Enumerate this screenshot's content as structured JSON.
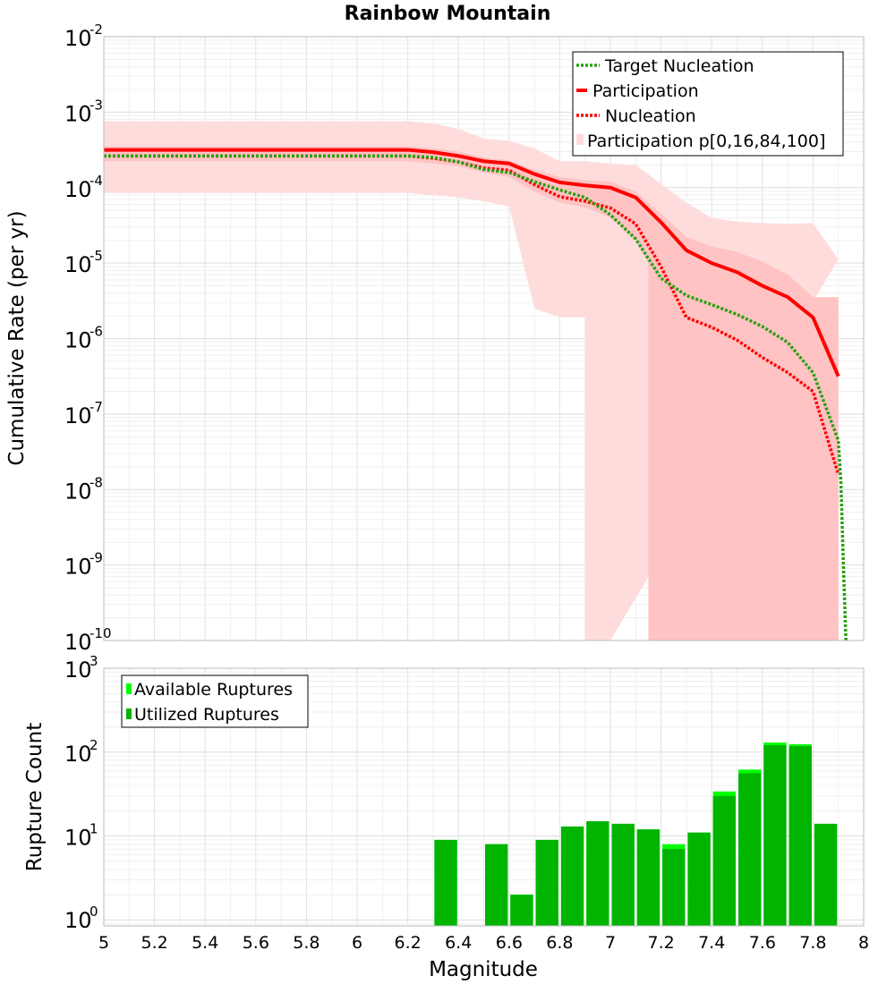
{
  "chart_data": [
    {
      "type": "line",
      "title": "Rainbow Mountain",
      "xlabel": "",
      "ylabel": "Cumulative Rate (per yr)",
      "xlim": [
        5,
        8
      ],
      "ylim_log10": [
        -10,
        -2
      ],
      "y_scale": "log",
      "y_tick_exponents": [
        "-2",
        "-3",
        "-4",
        "-5",
        "-6",
        "-7",
        "-8",
        "-9",
        "-10"
      ],
      "legend_position": "top-right",
      "legend": {
        "target": "Target Nucleation",
        "participation": "Participation",
        "nucleation": "Nucleation",
        "band": "Participation p[0,16,84,100]"
      },
      "colors": {
        "target": "#2aa012",
        "participation": "#ff0000",
        "nucleation": "#ff0000",
        "band_outer": "#ffdcdc",
        "band_inner": "#ffc3c3"
      },
      "series": [
        {
          "name": "Target Nucleation",
          "x": [
            5.0,
            6.2,
            6.3,
            6.4,
            6.5,
            6.6,
            6.7,
            6.8,
            6.9,
            7.0,
            7.1,
            7.2,
            7.3,
            7.4,
            7.5,
            7.6,
            7.7,
            7.8,
            7.9,
            7.91,
            7.92,
            7.93
          ],
          "log10_y": [
            -3.58,
            -3.58,
            -3.6,
            -3.66,
            -3.76,
            -3.8,
            -3.92,
            -4.03,
            -4.13,
            -4.36,
            -4.68,
            -5.2,
            -5.43,
            -5.55,
            -5.68,
            -5.84,
            -6.05,
            -6.45,
            -7.35,
            -7.9,
            -9.0,
            -10.0
          ]
        },
        {
          "name": "Participation",
          "x": [
            5.0,
            6.2,
            6.3,
            6.4,
            6.5,
            6.6,
            6.7,
            6.8,
            6.9,
            7.0,
            7.1,
            7.2,
            7.3,
            7.4,
            7.5,
            7.6,
            7.7,
            7.8,
            7.9
          ],
          "log10_y": [
            -3.5,
            -3.5,
            -3.53,
            -3.58,
            -3.65,
            -3.68,
            -3.82,
            -3.93,
            -3.97,
            -4.0,
            -4.13,
            -4.46,
            -4.83,
            -5.0,
            -5.12,
            -5.3,
            -5.45,
            -5.72,
            -6.5
          ]
        },
        {
          "name": "Nucleation",
          "x": [
            5.0,
            6.2,
            6.3,
            6.4,
            6.5,
            6.6,
            6.7,
            6.8,
            6.9,
            7.0,
            7.1,
            7.2,
            7.3,
            7.4,
            7.5,
            7.6,
            7.7,
            7.8,
            7.9
          ],
          "log10_y": [
            -3.58,
            -3.58,
            -3.61,
            -3.66,
            -3.74,
            -3.77,
            -3.96,
            -4.12,
            -4.18,
            -4.27,
            -4.48,
            -5.05,
            -5.72,
            -5.85,
            -6.02,
            -6.25,
            -6.45,
            -6.7,
            -7.8
          ]
        }
      ],
      "bands": [
        {
          "name": "p0-p100",
          "x": [
            5.0,
            6.2,
            6.3,
            6.4,
            6.5,
            6.6,
            6.7,
            6.8,
            6.9,
            7.0,
            7.1,
            7.2,
            7.3,
            7.4,
            7.5,
            7.6,
            7.7,
            7.8,
            7.9
          ],
          "upper_log10": [
            -3.12,
            -3.12,
            -3.15,
            -3.22,
            -3.35,
            -3.38,
            -3.48,
            -3.65,
            -3.65,
            -3.68,
            -3.7,
            -3.95,
            -4.2,
            -4.4,
            -4.45,
            -4.47,
            -4.48,
            -4.47,
            -4.95
          ],
          "lower_x": [
            5.0,
            6.2,
            6.3,
            6.4,
            6.5,
            6.6,
            6.7,
            6.8,
            6.9,
            6.9,
            7.0,
            7.0
          ],
          "lower_log10": [
            -4.07,
            -4.07,
            -4.1,
            -4.13,
            -4.18,
            -4.25,
            -5.6,
            -5.72,
            -5.72,
            -10.0,
            -10.0,
            -10.0
          ]
        },
        {
          "name": "p16-p84",
          "x": [
            5.0,
            6.2,
            6.3,
            6.4,
            6.5,
            6.6,
            6.7,
            6.8,
            6.9,
            7.0,
            7.1,
            7.2,
            7.3,
            7.4,
            7.5,
            7.6,
            7.7,
            7.8,
            7.9
          ],
          "upper_log10": [
            -3.45,
            -3.45,
            -3.48,
            -3.52,
            -3.6,
            -3.64,
            -3.76,
            -3.86,
            -3.9,
            -3.92,
            -4.05,
            -4.35,
            -4.65,
            -4.78,
            -4.85,
            -4.98,
            -5.15,
            -5.45,
            -5.45
          ],
          "lower_x": [
            5.0,
            6.2,
            6.3,
            6.4,
            6.5,
            6.6,
            6.7,
            6.8,
            6.9,
            7.0,
            7.1,
            7.15,
            7.15,
            7.9
          ],
          "lower_log10": [
            -3.65,
            -3.65,
            -3.68,
            -3.72,
            -3.8,
            -3.86,
            -4.05,
            -4.2,
            -4.26,
            -4.4,
            -4.7,
            -5.0,
            -10.0,
            -10.0
          ]
        }
      ]
    },
    {
      "type": "bar",
      "xlabel": "Magnitude",
      "ylabel": "Rupture Count",
      "xlim": [
        5,
        8
      ],
      "ylim_log10": [
        -0.07,
        3
      ],
      "y_scale": "log",
      "y_tick_exponents": [
        "3",
        "2",
        "1",
        "0"
      ],
      "x_ticks": [
        "5",
        "5.2",
        "5.4",
        "5.6",
        "5.8",
        "6",
        "6.2",
        "6.4",
        "6.6",
        "6.8",
        "7",
        "7.2",
        "7.4",
        "7.6",
        "7.8",
        "8"
      ],
      "legend_position": "top-left",
      "legend": {
        "available": "Available Ruptures",
        "utilized": "Utilized Ruptures"
      },
      "colors": {
        "available": "#00ff00",
        "utilized": "#00b400"
      },
      "bin_width": 0.1,
      "bins": [
        6.35,
        6.55,
        6.65,
        6.75,
        6.85,
        6.95,
        7.05,
        7.15,
        7.25,
        7.35,
        7.45,
        7.55,
        7.65,
        7.75,
        7.85
      ],
      "available": [
        9,
        8,
        2,
        9,
        13,
        15,
        14,
        12,
        8,
        11,
        34,
        62,
        130,
        124,
        14
      ],
      "utilized": [
        9,
        8,
        2,
        9,
        13,
        15,
        14,
        12,
        7,
        11,
        30,
        56,
        121,
        118,
        14
      ]
    }
  ]
}
